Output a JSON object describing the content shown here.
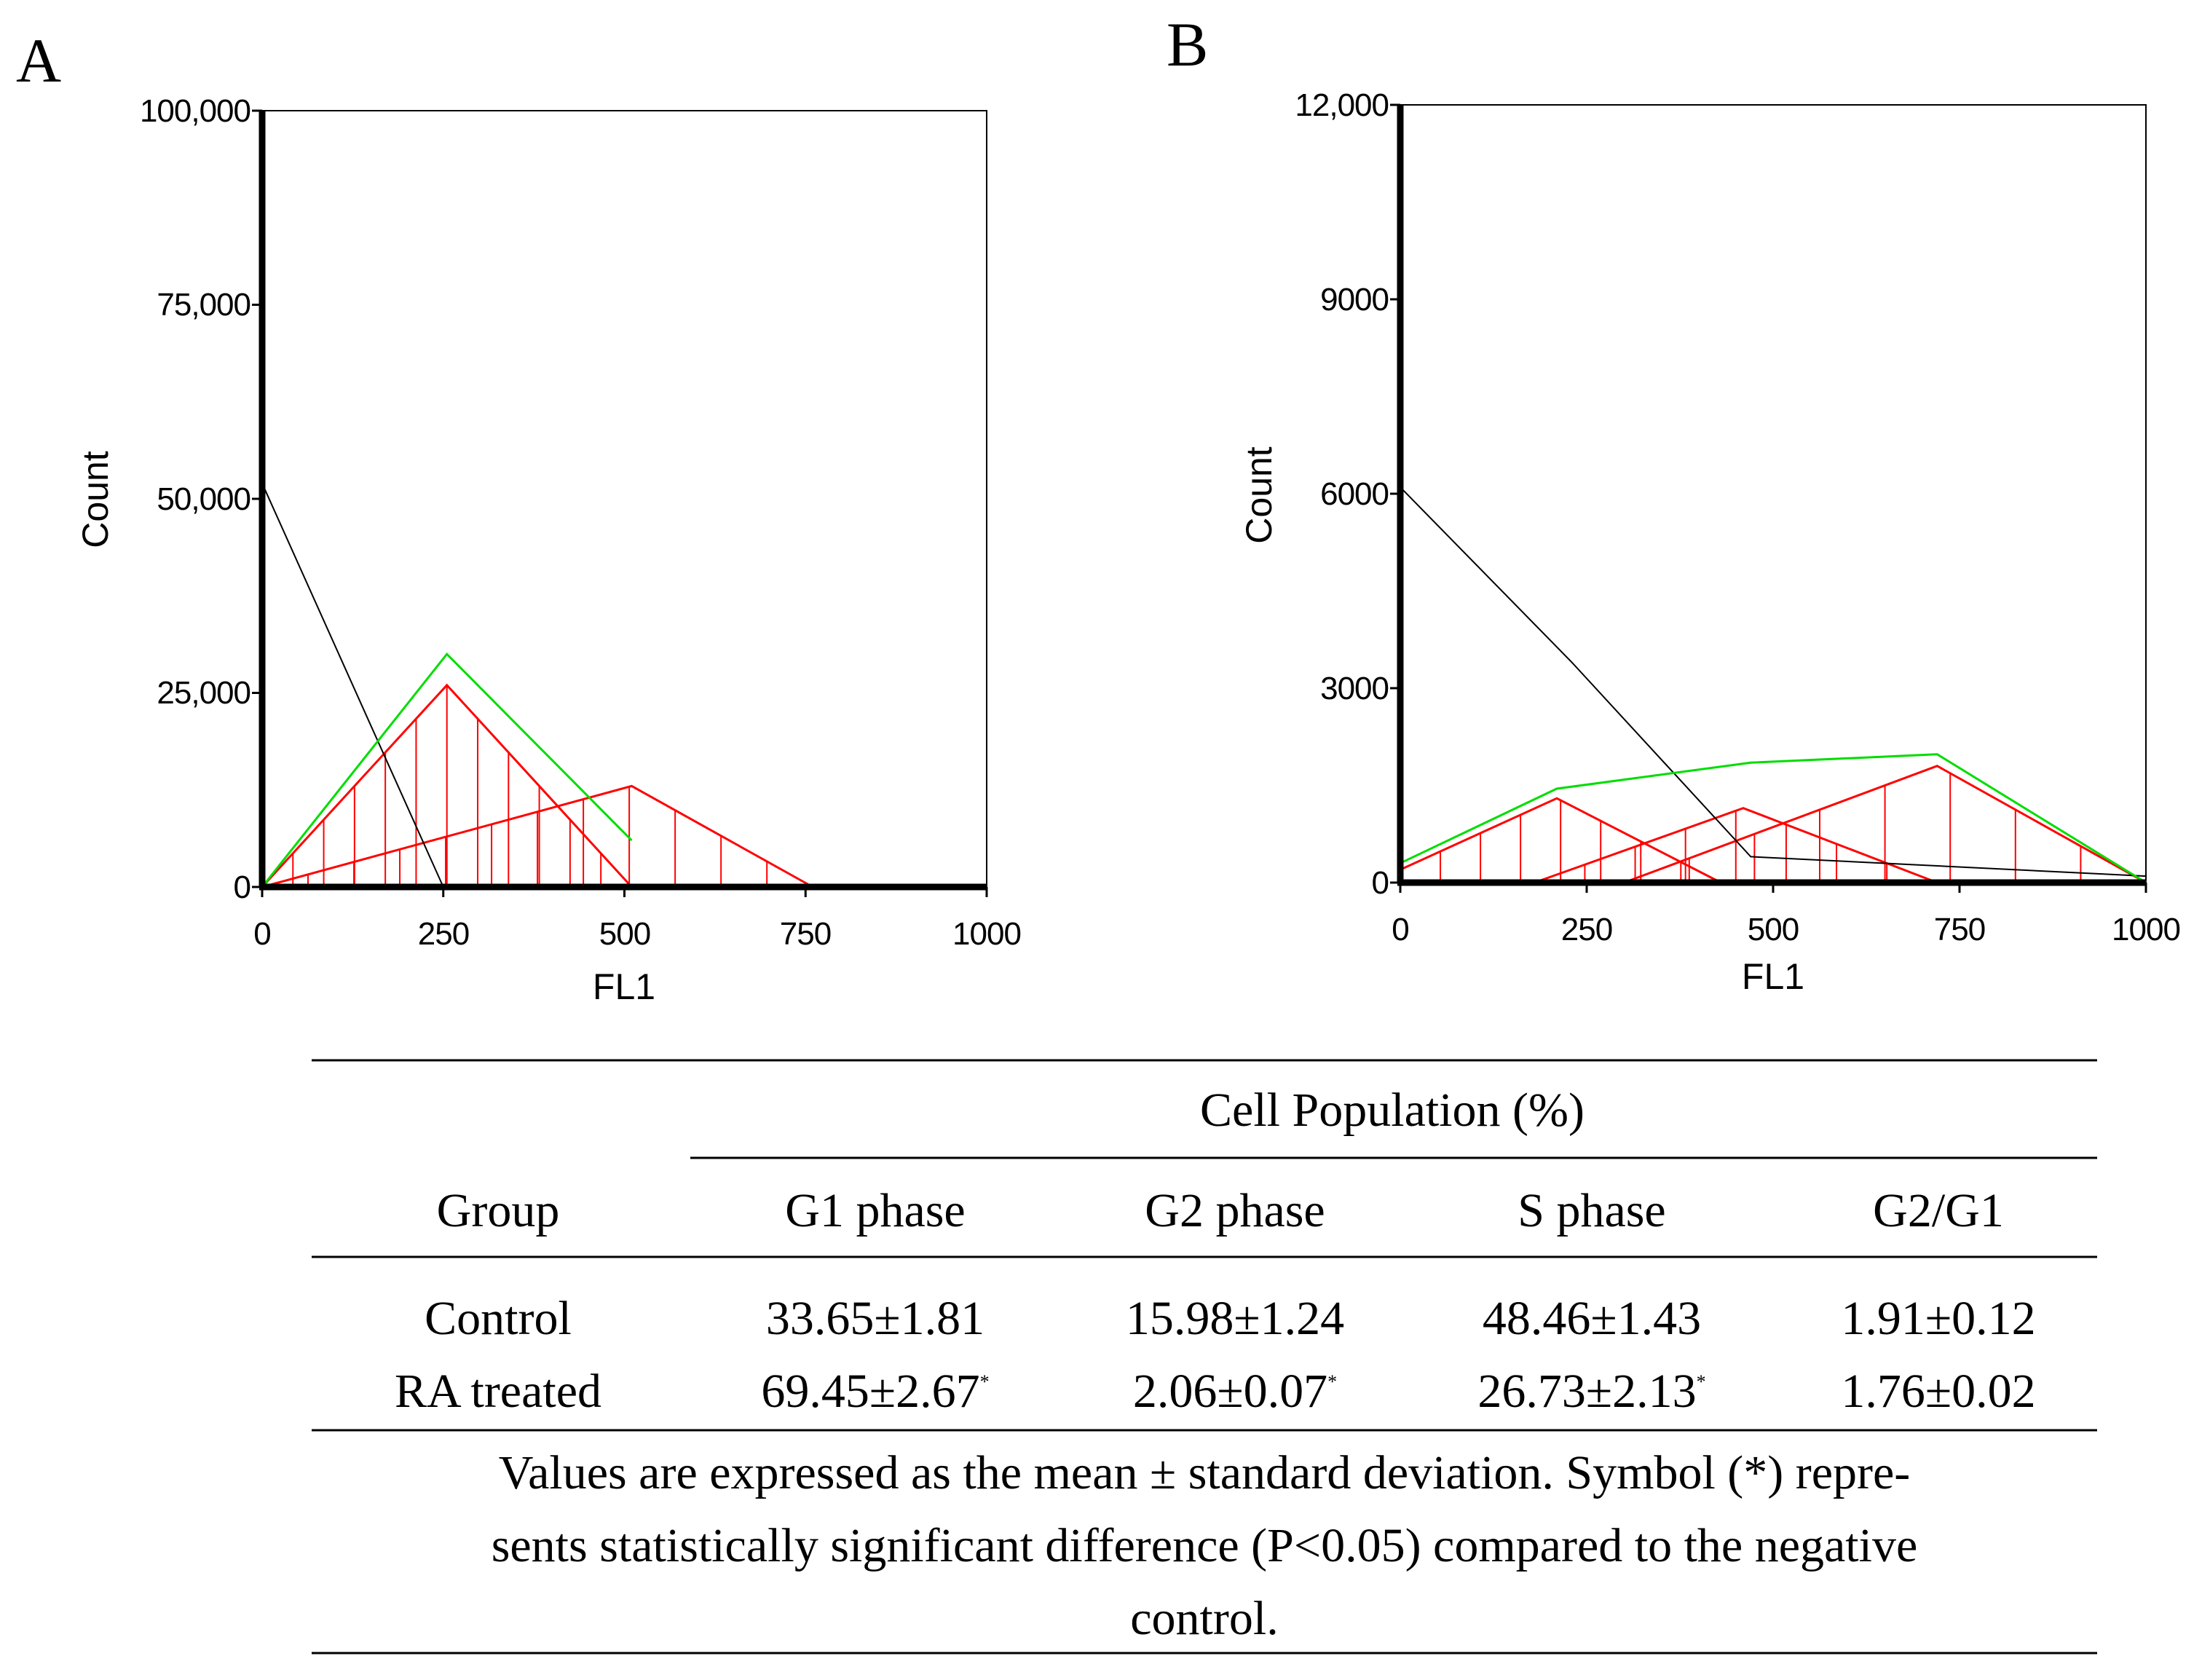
{
  "panels": [
    {
      "letter": "A",
      "ylabel": "Count",
      "xlabel": "FL1",
      "ytick_labels": [
        "0",
        "25,000",
        "50,000",
        "75,000",
        "100,000"
      ],
      "xtick_labels": [
        "0",
        "250",
        "500",
        "750",
        "1000"
      ]
    },
    {
      "letter": "B",
      "ylabel": "Count",
      "xlabel": "FL1",
      "ytick_labels": [
        "0",
        "3000",
        "6000",
        "9000",
        "12,000"
      ],
      "xtick_labels": [
        "0",
        "250",
        "500",
        "750",
        "1000"
      ]
    }
  ],
  "chart_data": [
    {
      "type": "line",
      "panel": "A",
      "xlabel": "FL1",
      "ylabel": "Count",
      "xlim": [
        0,
        1000
      ],
      "ylim": [
        0,
        100000
      ],
      "xticks": [
        0,
        250,
        500,
        750,
        1000
      ],
      "yticks": [
        0,
        25000,
        50000,
        75000,
        100000
      ],
      "grid": false,
      "series": [
        {
          "color": "#000000",
          "x": [
            0,
            250
          ],
          "y": [
            52000,
            0
          ]
        },
        {
          "color": "#00dd00",
          "x": [
            0,
            255,
            510
          ],
          "y": [
            0,
            30000,
            6000
          ]
        },
        {
          "color": "#ff0000",
          "x": [
            0,
            255,
            510
          ],
          "y": [
            0,
            26000,
            0
          ]
        },
        {
          "color": "#ff0000",
          "x": [
            0,
            510,
            760
          ],
          "y": [
            0,
            13000,
            0
          ]
        }
      ]
    },
    {
      "type": "line",
      "panel": "B",
      "xlabel": "FL1",
      "ylabel": "Count",
      "xlim": [
        0,
        1000
      ],
      "ylim": [
        0,
        12000
      ],
      "xticks": [
        0,
        250,
        500,
        750,
        1000
      ],
      "yticks": [
        0,
        3000,
        6000,
        9000,
        12000
      ],
      "grid": false,
      "series": [
        {
          "color": "#000000",
          "x": [
            0,
            230,
            470,
            1000
          ],
          "y": [
            6100,
            3400,
            400,
            100
          ]
        },
        {
          "color": "#00dd00",
          "x": [
            0,
            210,
            470,
            720,
            1000
          ],
          "y": [
            300,
            1450,
            1850,
            1980,
            0
          ]
        },
        {
          "color": "#ff0000",
          "x": [
            0,
            210,
            430
          ],
          "y": [
            200,
            1300,
            0
          ]
        },
        {
          "color": "#ff0000",
          "x": [
            180,
            460,
            720
          ],
          "y": [
            0,
            1150,
            0
          ]
        },
        {
          "color": "#ff0000",
          "x": [
            300,
            720,
            1000
          ],
          "y": [
            0,
            1800,
            0
          ]
        }
      ]
    }
  ],
  "table": {
    "span_header": "Cell Population (%)",
    "columns": [
      "Group",
      "G1 phase",
      "G2 phase",
      "S phase",
      "G2/G1"
    ],
    "rows": [
      {
        "group": "Control",
        "g1": "33.65±1.81",
        "g1_mark": "",
        "g2": "15.98±1.24",
        "g2_mark": "",
        "s": "48.46±1.43",
        "s_mark": "",
        "ratio": "1.91±0.12"
      },
      {
        "group": "RA treated",
        "g1": "69.45±2.67",
        "g1_mark": "*",
        "g2": "2.06±0.07",
        "g2_mark": "*",
        "s": "26.73±2.13",
        "s_mark": "*",
        "ratio": "1.76±0.02"
      }
    ],
    "note_lines": [
      "Values are expressed as the mean ± standard deviation. Symbol (*) repre-",
      "sents statistically significant difference (P<0.05) compared to the negative",
      "control."
    ]
  }
}
